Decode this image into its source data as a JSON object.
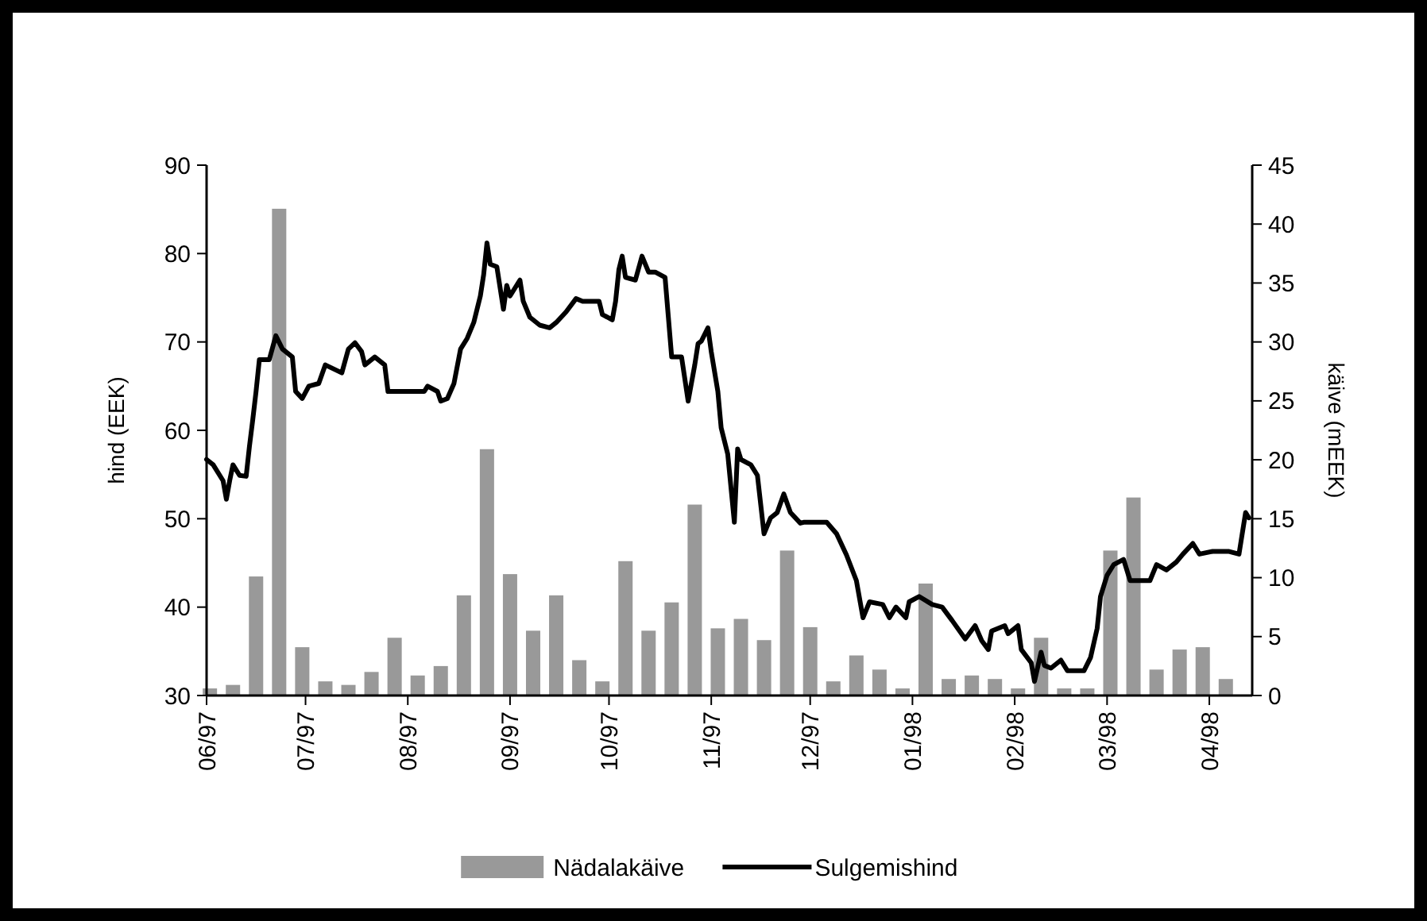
{
  "chart_data": {
    "type": "bar",
    "xlabel": null,
    "ylabel": "hind (EEK)",
    "y2label": "käive (mEEK)",
    "xlim": [
      "1997-06-01",
      "1998-04-14"
    ],
    "xticks": [
      {
        "value": "1997-06-01",
        "label": "06/97"
      },
      {
        "value": "1997-07-01",
        "label": "07/97"
      },
      {
        "value": "1997-08-01",
        "label": "08/97"
      },
      {
        "value": "1997-09-01",
        "label": "09/97"
      },
      {
        "value": "1997-10-01",
        "label": "10/97"
      },
      {
        "value": "1997-11-01",
        "label": "11/97"
      },
      {
        "value": "1997-12-01",
        "label": "12/97"
      },
      {
        "value": "1998-01-01",
        "label": "01/98"
      },
      {
        "value": "1998-02-01",
        "label": "02/98"
      },
      {
        "value": "1998-03-01",
        "label": "03/98"
      },
      {
        "value": "1998-04-01",
        "label": "04/98"
      }
    ],
    "ylim": [
      30,
      90
    ],
    "yticks": [
      30,
      40,
      50,
      60,
      70,
      80,
      90
    ],
    "y2lim": [
      0,
      45
    ],
    "y2ticks": [
      0,
      5,
      10,
      15,
      20,
      25,
      30,
      35,
      40,
      45
    ],
    "grid": false,
    "legend": "bottom",
    "series": [
      {
        "name": "Nädalakäive",
        "axis": "y2",
        "color": "#999999",
        "x": [
          "1997-06-02",
          "1997-06-09",
          "1997-06-16",
          "1997-06-23",
          "1997-06-30",
          "1997-07-07",
          "1997-07-14",
          "1997-07-21",
          "1997-07-28",
          "1997-08-04",
          "1997-08-11",
          "1997-08-18",
          "1997-08-25",
          "1997-09-01",
          "1997-09-08",
          "1997-09-15",
          "1997-09-22",
          "1997-09-29",
          "1997-10-06",
          "1997-10-13",
          "1997-10-20",
          "1997-10-27",
          "1997-11-03",
          "1997-11-10",
          "1997-11-17",
          "1997-11-24",
          "1997-12-01",
          "1997-12-08",
          "1997-12-15",
          "1997-12-22",
          "1997-12-29",
          "1998-01-05",
          "1998-01-12",
          "1998-01-19",
          "1998-01-26",
          "1998-02-02",
          "1998-02-09",
          "1998-02-16",
          "1998-02-23",
          "1998-03-02",
          "1998-03-09",
          "1998-03-16",
          "1998-03-23",
          "1998-03-30",
          "1998-04-06"
        ],
        "values": [
          0.6,
          0.9,
          10.1,
          41.3,
          4.1,
          1.2,
          0.9,
          2.0,
          4.9,
          1.7,
          2.5,
          8.5,
          20.9,
          10.3,
          5.5,
          8.5,
          3.0,
          1.2,
          11.4,
          5.5,
          7.9,
          16.2,
          5.7,
          6.5,
          4.7,
          12.3,
          5.8,
          1.2,
          3.4,
          2.2,
          0.6,
          9.5,
          1.4,
          1.7,
          1.4,
          0.6,
          4.9,
          0.6,
          0.6,
          12.3,
          16.8,
          2.2,
          3.9,
          4.1,
          1.4
        ]
      },
      {
        "name": "Sulgemishind",
        "type": "line",
        "axis": "y",
        "color": "#000000",
        "line_style": "solid",
        "marker": "none",
        "x": [
          "1997-06-01",
          "1997-06-03",
          "1997-06-06",
          "1997-06-07",
          "1997-06-08",
          "1997-06-09",
          "1997-06-11",
          "1997-06-13",
          "1997-06-14",
          "1997-06-15",
          "1997-06-16",
          "1997-06-17",
          "1997-06-20",
          "1997-06-22",
          "1997-06-24",
          "1997-06-27",
          "1997-06-28",
          "1997-06-30",
          "1997-07-02",
          "1997-07-05",
          "1997-07-07",
          "1997-07-12",
          "1997-07-14",
          "1997-07-16",
          "1997-07-18",
          "1997-07-19",
          "1997-07-22",
          "1997-07-25",
          "1997-07-26",
          "1997-08-01",
          "1997-08-06",
          "1997-08-07",
          "1997-08-10",
          "1997-08-11",
          "1997-08-13",
          "1997-08-15",
          "1997-08-17",
          "1997-08-19",
          "1997-08-21",
          "1997-08-23",
          "1997-08-24",
          "1997-08-25",
          "1997-08-26",
          "1997-08-28",
          "1997-08-30",
          "1997-08-31",
          "1997-09-01",
          "1997-09-04",
          "1997-09-05",
          "1997-09-07",
          "1997-09-10",
          "1997-09-13",
          "1997-09-15",
          "1997-09-18",
          "1997-09-21",
          "1997-09-23",
          "1997-09-28",
          "1997-09-29",
          "1997-10-02",
          "1997-10-03",
          "1997-10-04",
          "1997-10-05",
          "1997-10-06",
          "1997-10-09",
          "1997-10-11",
          "1997-10-13",
          "1997-10-15",
          "1997-10-18",
          "1997-10-19",
          "1997-10-20",
          "1997-10-23",
          "1997-10-25",
          "1997-10-27",
          "1997-10-28",
          "1997-10-29",
          "1997-10-31",
          "1997-11-01",
          "1997-11-03",
          "1997-11-04",
          "1997-11-06",
          "1997-11-08",
          "1997-11-09",
          "1997-11-10",
          "1997-11-13",
          "1997-11-15",
          "1997-11-17",
          "1997-11-19",
          "1997-11-21",
          "1997-11-23",
          "1997-11-25",
          "1997-11-28",
          "1997-11-29",
          "1997-12-06",
          "1997-12-09",
          "1997-12-12",
          "1997-12-15",
          "1997-12-17",
          "1997-12-19",
          "1997-12-23",
          "1997-12-25",
          "1997-12-27",
          "1997-12-30",
          "1997-12-31",
          "1998-01-03",
          "1998-01-07",
          "1998-01-10",
          "1998-01-13",
          "1998-01-17",
          "1998-01-20",
          "1998-01-22",
          "1998-01-24",
          "1998-01-25",
          "1998-01-29",
          "1998-01-30",
          "1998-02-02",
          "1998-02-03",
          "1998-02-06",
          "1998-02-07",
          "1998-02-09",
          "1998-02-10",
          "1998-02-12",
          "1998-02-15",
          "1998-02-17",
          "1998-02-22",
          "1998-02-24",
          "1998-02-26",
          "1998-02-27",
          "1998-03-01",
          "1998-03-03",
          "1998-03-06",
          "1998-03-08",
          "1998-03-14",
          "1998-03-16",
          "1998-03-19",
          "1998-03-22",
          "1998-03-24",
          "1998-03-27",
          "1998-03-29",
          "1998-04-02",
          "1998-04-07",
          "1998-04-10",
          "1998-04-12",
          "1998-04-13"
        ],
        "values": [
          56.7,
          56.1,
          54.3,
          52.2,
          54.3,
          56.1,
          54.9,
          54.8,
          58.2,
          61.2,
          64.4,
          68.0,
          68.0,
          70.7,
          69.2,
          68.3,
          64.4,
          63.6,
          65.0,
          65.3,
          67.4,
          66.5,
          69.2,
          69.9,
          68.9,
          67.4,
          68.3,
          67.4,
          64.4,
          64.4,
          64.4,
          65.0,
          64.4,
          63.3,
          63.6,
          65.3,
          69.2,
          70.4,
          72.2,
          75.2,
          77.6,
          81.2,
          78.8,
          78.5,
          73.7,
          76.4,
          75.2,
          77.0,
          74.6,
          72.8,
          71.9,
          71.6,
          72.2,
          73.4,
          74.9,
          74.6,
          74.6,
          73.1,
          72.5,
          74.6,
          78.2,
          79.7,
          77.3,
          77.0,
          79.7,
          77.9,
          77.9,
          77.3,
          72.8,
          68.3,
          68.3,
          63.3,
          67.4,
          69.8,
          70.1,
          71.6,
          68.9,
          64.4,
          60.3,
          57.3,
          49.6,
          57.9,
          56.7,
          56.1,
          54.9,
          48.3,
          50.1,
          50.7,
          52.8,
          50.7,
          49.5,
          49.6,
          49.6,
          48.3,
          45.9,
          43.0,
          38.8,
          40.6,
          40.3,
          38.8,
          40.0,
          38.8,
          40.6,
          41.2,
          40.3,
          40.0,
          38.5,
          36.4,
          37.9,
          36.2,
          35.2,
          37.3,
          37.9,
          37.0,
          37.9,
          35.2,
          33.7,
          31.6,
          34.9,
          33.4,
          33.1,
          34.0,
          32.8,
          32.8,
          34.3,
          37.6,
          41.2,
          43.6,
          44.8,
          45.4,
          43.0,
          43.0,
          44.8,
          44.2,
          45.1,
          46.0,
          47.2,
          46.0,
          46.3,
          46.3,
          46.0,
          50.7,
          50.1
        ]
      }
    ]
  }
}
